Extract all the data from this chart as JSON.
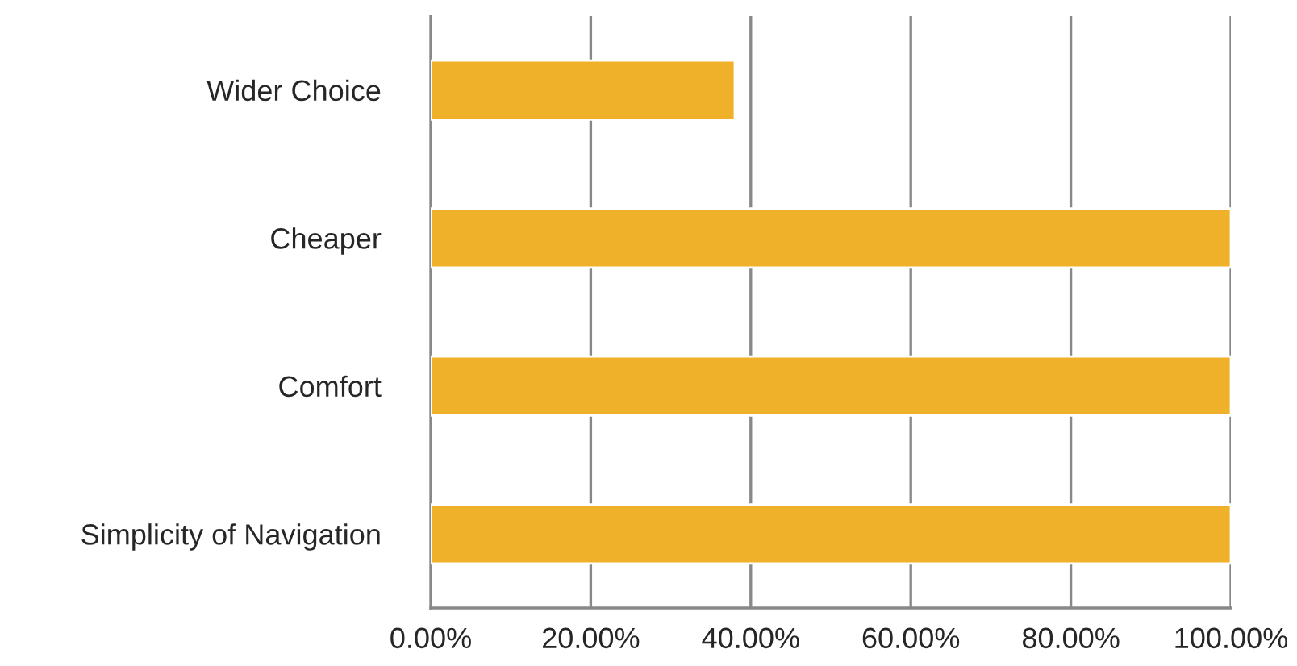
{
  "chart_data": {
    "type": "bar",
    "orientation": "horizontal",
    "categories": [
      "Wider Choice",
      "Cheaper",
      "Comfort",
      "Simplicity of Navigation"
    ],
    "values": [
      38,
      100,
      100,
      100
    ],
    "color": "#f0b12a",
    "xlim": [
      0,
      100
    ],
    "xticks": [
      {
        "value": 0,
        "label": "0.00%"
      },
      {
        "value": 20,
        "label": "20.00%"
      },
      {
        "value": 40,
        "label": "40.00%"
      },
      {
        "value": 60,
        "label": "60.00%"
      },
      {
        "value": 80,
        "label": "80.00%"
      },
      {
        "value": 100,
        "label": "100.00%"
      }
    ],
    "grid": "x"
  }
}
